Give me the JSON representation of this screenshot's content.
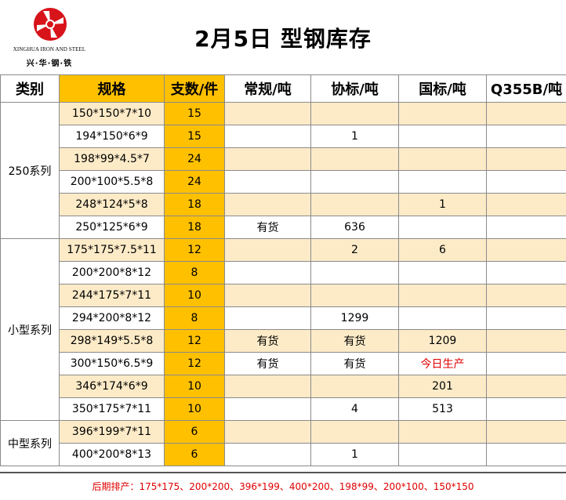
{
  "logo": {
    "english": "XINGHUA IRON AND STEEL",
    "chinese": "兴·华·钢·铁",
    "brand_color": "#d7141a"
  },
  "title": "2月5日 型钢库存",
  "headers": [
    "类别",
    "规格",
    "支数/件",
    "常规/吨",
    "协标/吨",
    "国标/吨",
    "Q355B/吨"
  ],
  "groups": [
    {
      "name": "250系列",
      "rows": [
        {
          "spec": "150*150*7*10",
          "count": "15",
          "regular": "",
          "assoc": "",
          "national": "",
          "q355b": ""
        },
        {
          "spec": "194*150*6*9",
          "count": "15",
          "regular": "",
          "assoc": "1",
          "national": "",
          "q355b": ""
        },
        {
          "spec": "198*99*4.5*7",
          "count": "24",
          "regular": "",
          "assoc": "",
          "national": "",
          "q355b": ""
        },
        {
          "spec": "200*100*5.5*8",
          "count": "24",
          "regular": "",
          "assoc": "",
          "national": "",
          "q355b": ""
        },
        {
          "spec": "248*124*5*8",
          "count": "18",
          "regular": "",
          "assoc": "",
          "national": "1",
          "q355b": ""
        },
        {
          "spec": "250*125*6*9",
          "count": "18",
          "regular": "有货",
          "assoc": "636",
          "national": "",
          "q355b": ""
        }
      ]
    },
    {
      "name": "小型系列",
      "rows": [
        {
          "spec": "175*175*7.5*11",
          "count": "12",
          "regular": "",
          "assoc": "2",
          "national": "6",
          "q355b": ""
        },
        {
          "spec": "200*200*8*12",
          "count": "8",
          "regular": "",
          "assoc": "",
          "national": "",
          "q355b": ""
        },
        {
          "spec": "244*175*7*11",
          "count": "10",
          "regular": "",
          "assoc": "",
          "national": "",
          "q355b": ""
        },
        {
          "spec": "294*200*8*12",
          "count": "8",
          "regular": "",
          "assoc": "1299",
          "national": "",
          "q355b": ""
        },
        {
          "spec": "298*149*5.5*8",
          "count": "12",
          "regular": "有货",
          "assoc": "有货",
          "national": "1209",
          "q355b": ""
        },
        {
          "spec": "300*150*6.5*9",
          "count": "12",
          "regular": "有货",
          "assoc": "有货",
          "national": "今日生产",
          "q355b": "",
          "national_red": true
        },
        {
          "spec": "346*174*6*9",
          "count": "10",
          "regular": "",
          "assoc": "",
          "national": "201",
          "q355b": ""
        },
        {
          "spec": "350*175*7*11",
          "count": "10",
          "regular": "",
          "assoc": "4",
          "national": "513",
          "q355b": ""
        }
      ]
    },
    {
      "name": "中型系列",
      "rows": [
        {
          "spec": "396*199*7*11",
          "count": "6",
          "regular": "",
          "assoc": "",
          "national": "",
          "q355b": ""
        },
        {
          "spec": "400*200*8*13",
          "count": "6",
          "regular": "",
          "assoc": "1",
          "national": "",
          "q355b": ""
        }
      ]
    }
  ],
  "footer": "后期排产：175*175、200*200、396*199、400*200、198*99、200*100、150*150",
  "colors": {
    "gold": "#ffc000",
    "light_row": "#fdebc8",
    "red": "#e00000"
  }
}
